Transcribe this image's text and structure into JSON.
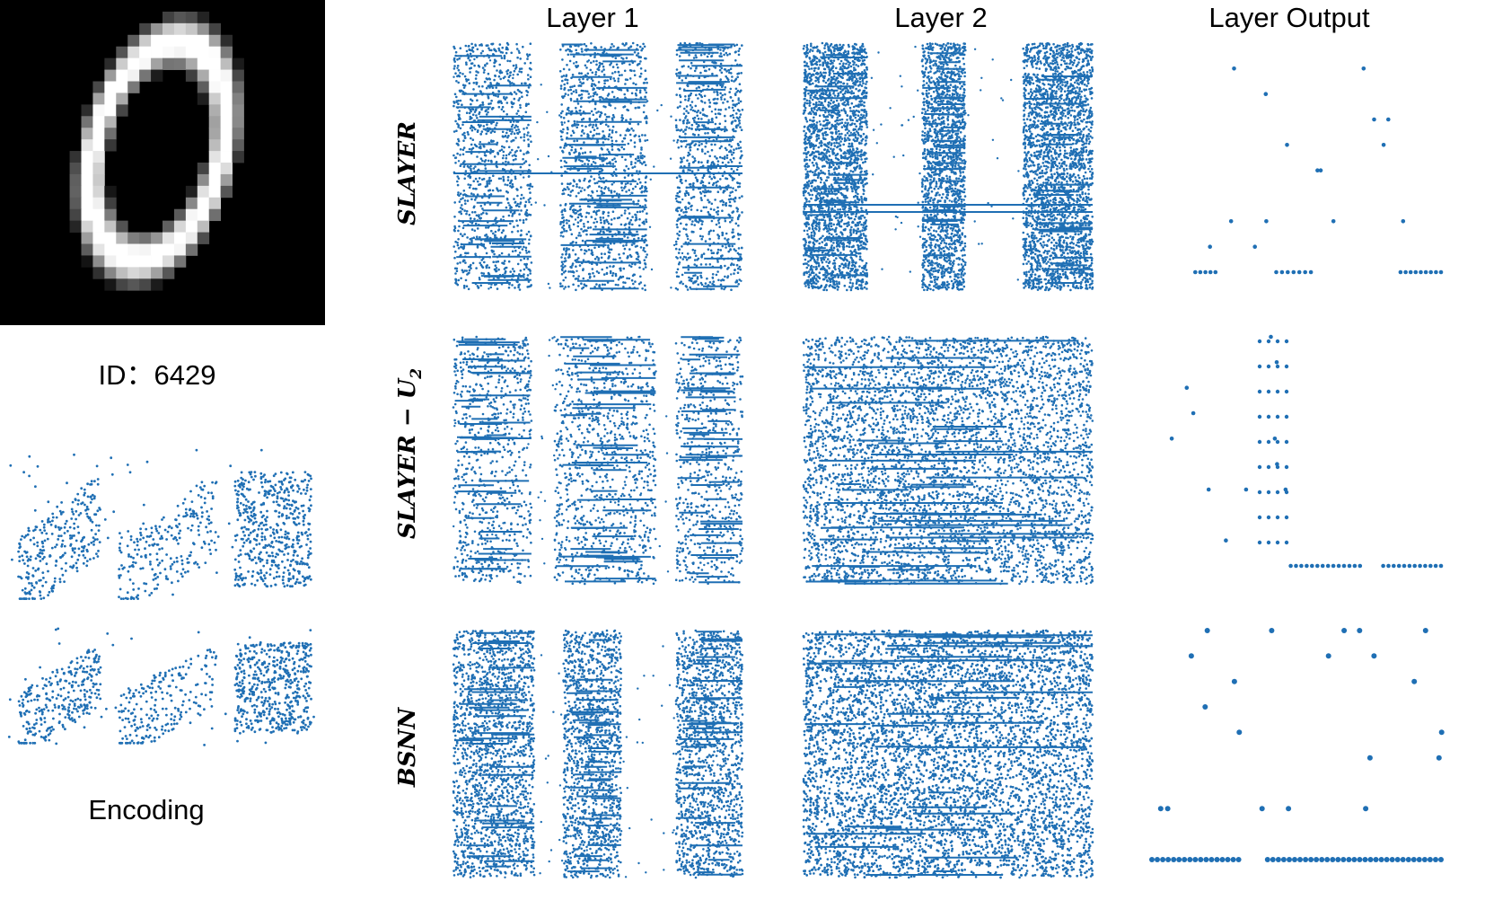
{
  "figure": {
    "sample_id_label": "ID：6429",
    "encoding_label": "Encoding",
    "column_titles": [
      "Layer 1",
      "Layer 2",
      "Layer Output"
    ],
    "row_labels": [
      "SLAYER",
      "SLAYER − U",
      "BSNN"
    ],
    "row_label_subscript": "2",
    "spike_color": "#1f6fb4"
  },
  "chart_data": [
    {
      "type": "scatter",
      "subtype": "spike-raster",
      "panel": "Encoding (channel 1)",
      "axes_visible": false,
      "dense_regions": [
        0.05,
        0.2,
        0.4,
        0.55,
        0.75,
        0.95
      ]
    },
    {
      "type": "scatter",
      "subtype": "spike-raster",
      "panel": "Encoding (channel 2)",
      "axes_visible": false,
      "dense_regions": [
        0.05,
        0.22,
        0.4,
        0.58,
        0.75,
        0.95
      ]
    },
    {
      "type": "scatter",
      "subtype": "spike-raster",
      "row": "SLAYER",
      "column": "Layer 1",
      "axes_visible": false,
      "dense_bands": [
        [
          0.0,
          0.27
        ],
        [
          0.37,
          0.67
        ],
        [
          0.77,
          1.0
        ]
      ]
    },
    {
      "type": "scatter",
      "subtype": "spike-raster",
      "row": "SLAYER",
      "column": "Layer 2",
      "axes_visible": false,
      "dense_bands": [
        [
          0.0,
          0.22
        ],
        [
          0.41,
          0.56
        ],
        [
          0.76,
          1.0
        ]
      ]
    },
    {
      "type": "scatter",
      "subtype": "spike-raster",
      "row": "SLAYER",
      "column": "Layer Output",
      "axes_visible": false,
      "spike_times": [
        0.18,
        0.25,
        0.4,
        0.5,
        0.6,
        0.72,
        0.8,
        0.9
      ],
      "bursts": [
        [
          0.15,
          0.22
        ],
        [
          0.43,
          0.55
        ],
        [
          0.86,
          1.0
        ]
      ]
    },
    {
      "type": "scatter",
      "subtype": "spike-raster",
      "row": "SLAYER − U2",
      "column": "Layer 1",
      "axes_visible": false,
      "dense_bands": [
        [
          0.0,
          0.27
        ],
        [
          0.35,
          0.7
        ],
        [
          0.77,
          1.0
        ]
      ]
    },
    {
      "type": "scatter",
      "subtype": "spike-raster",
      "row": "SLAYER − U2",
      "column": "Layer 2",
      "axes_visible": false,
      "dense_bands": [
        [
          0.0,
          1.0
        ]
      ]
    },
    {
      "type": "scatter",
      "subtype": "spike-raster",
      "row": "SLAYER − U2",
      "column": "Layer Output",
      "axes_visible": false,
      "spike_times": [
        0.1,
        0.2,
        0.3,
        0.38,
        0.42,
        0.46,
        0.5
      ],
      "bursts": [
        [
          0.48,
          0.72
        ],
        [
          0.8,
          1.0
        ]
      ]
    },
    {
      "type": "scatter",
      "subtype": "spike-raster",
      "row": "BSNN",
      "column": "Layer 1",
      "axes_visible": false,
      "dense_bands": [
        [
          0.0,
          0.28
        ],
        [
          0.38,
          0.58
        ],
        [
          0.77,
          1.0
        ]
      ]
    },
    {
      "type": "scatter",
      "subtype": "spike-raster",
      "row": "BSNN",
      "column": "Layer 2",
      "axes_visible": false,
      "dense_bands": [
        [
          0.0,
          1.0
        ]
      ]
    },
    {
      "type": "scatter",
      "subtype": "spike-raster",
      "row": "BSNN",
      "column": "Layer Output",
      "axes_visible": false,
      "spike_times": [
        0.05,
        0.12,
        0.2,
        0.28,
        0.35,
        0.42,
        0.5,
        0.6,
        0.7,
        0.8,
        0.9,
        0.97
      ],
      "bursts": [
        [
          0.0,
          0.3
        ],
        [
          0.4,
          1.0
        ]
      ]
    }
  ]
}
